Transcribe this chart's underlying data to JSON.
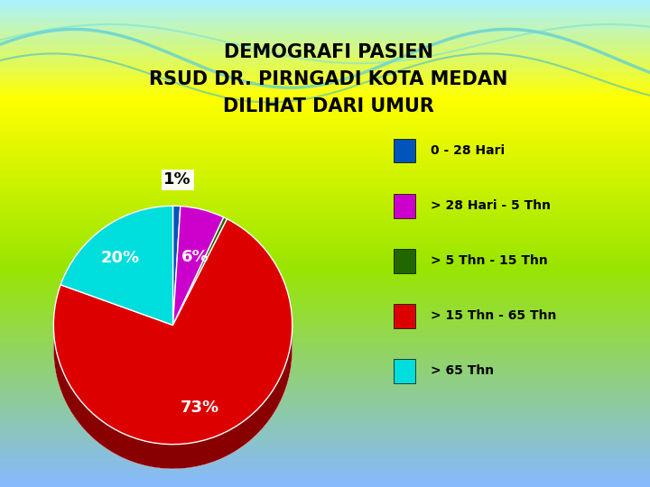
{
  "title": "DEMOGRAFI PASIEN\nRSUD DR. PIRNGADI KOTA MEDAN\nDILIHAT DARI UMUR",
  "slices": [
    1,
    6,
    0.5,
    73,
    19.5
  ],
  "labels": [
    "0 - 28 Hari",
    "> 28 Hari - 5 Thn",
    "> 5 Thn - 15 Thn",
    "> 15 Thn - 65 Thn",
    "> 65 Thn"
  ],
  "colors": [
    "#0055BB",
    "#CC00CC",
    "#226600",
    "#DD0000",
    "#00DDDD"
  ],
  "side_colors": [
    "#002266",
    "#660066",
    "#113300",
    "#880000",
    "#007777"
  ],
  "pct_labels": [
    "1%",
    "6%",
    "",
    "73%",
    "20%"
  ],
  "pct_colors": [
    "black",
    "white",
    "",
    "white",
    "white"
  ],
  "title_fontsize": 15,
  "legend_fontsize": 10
}
